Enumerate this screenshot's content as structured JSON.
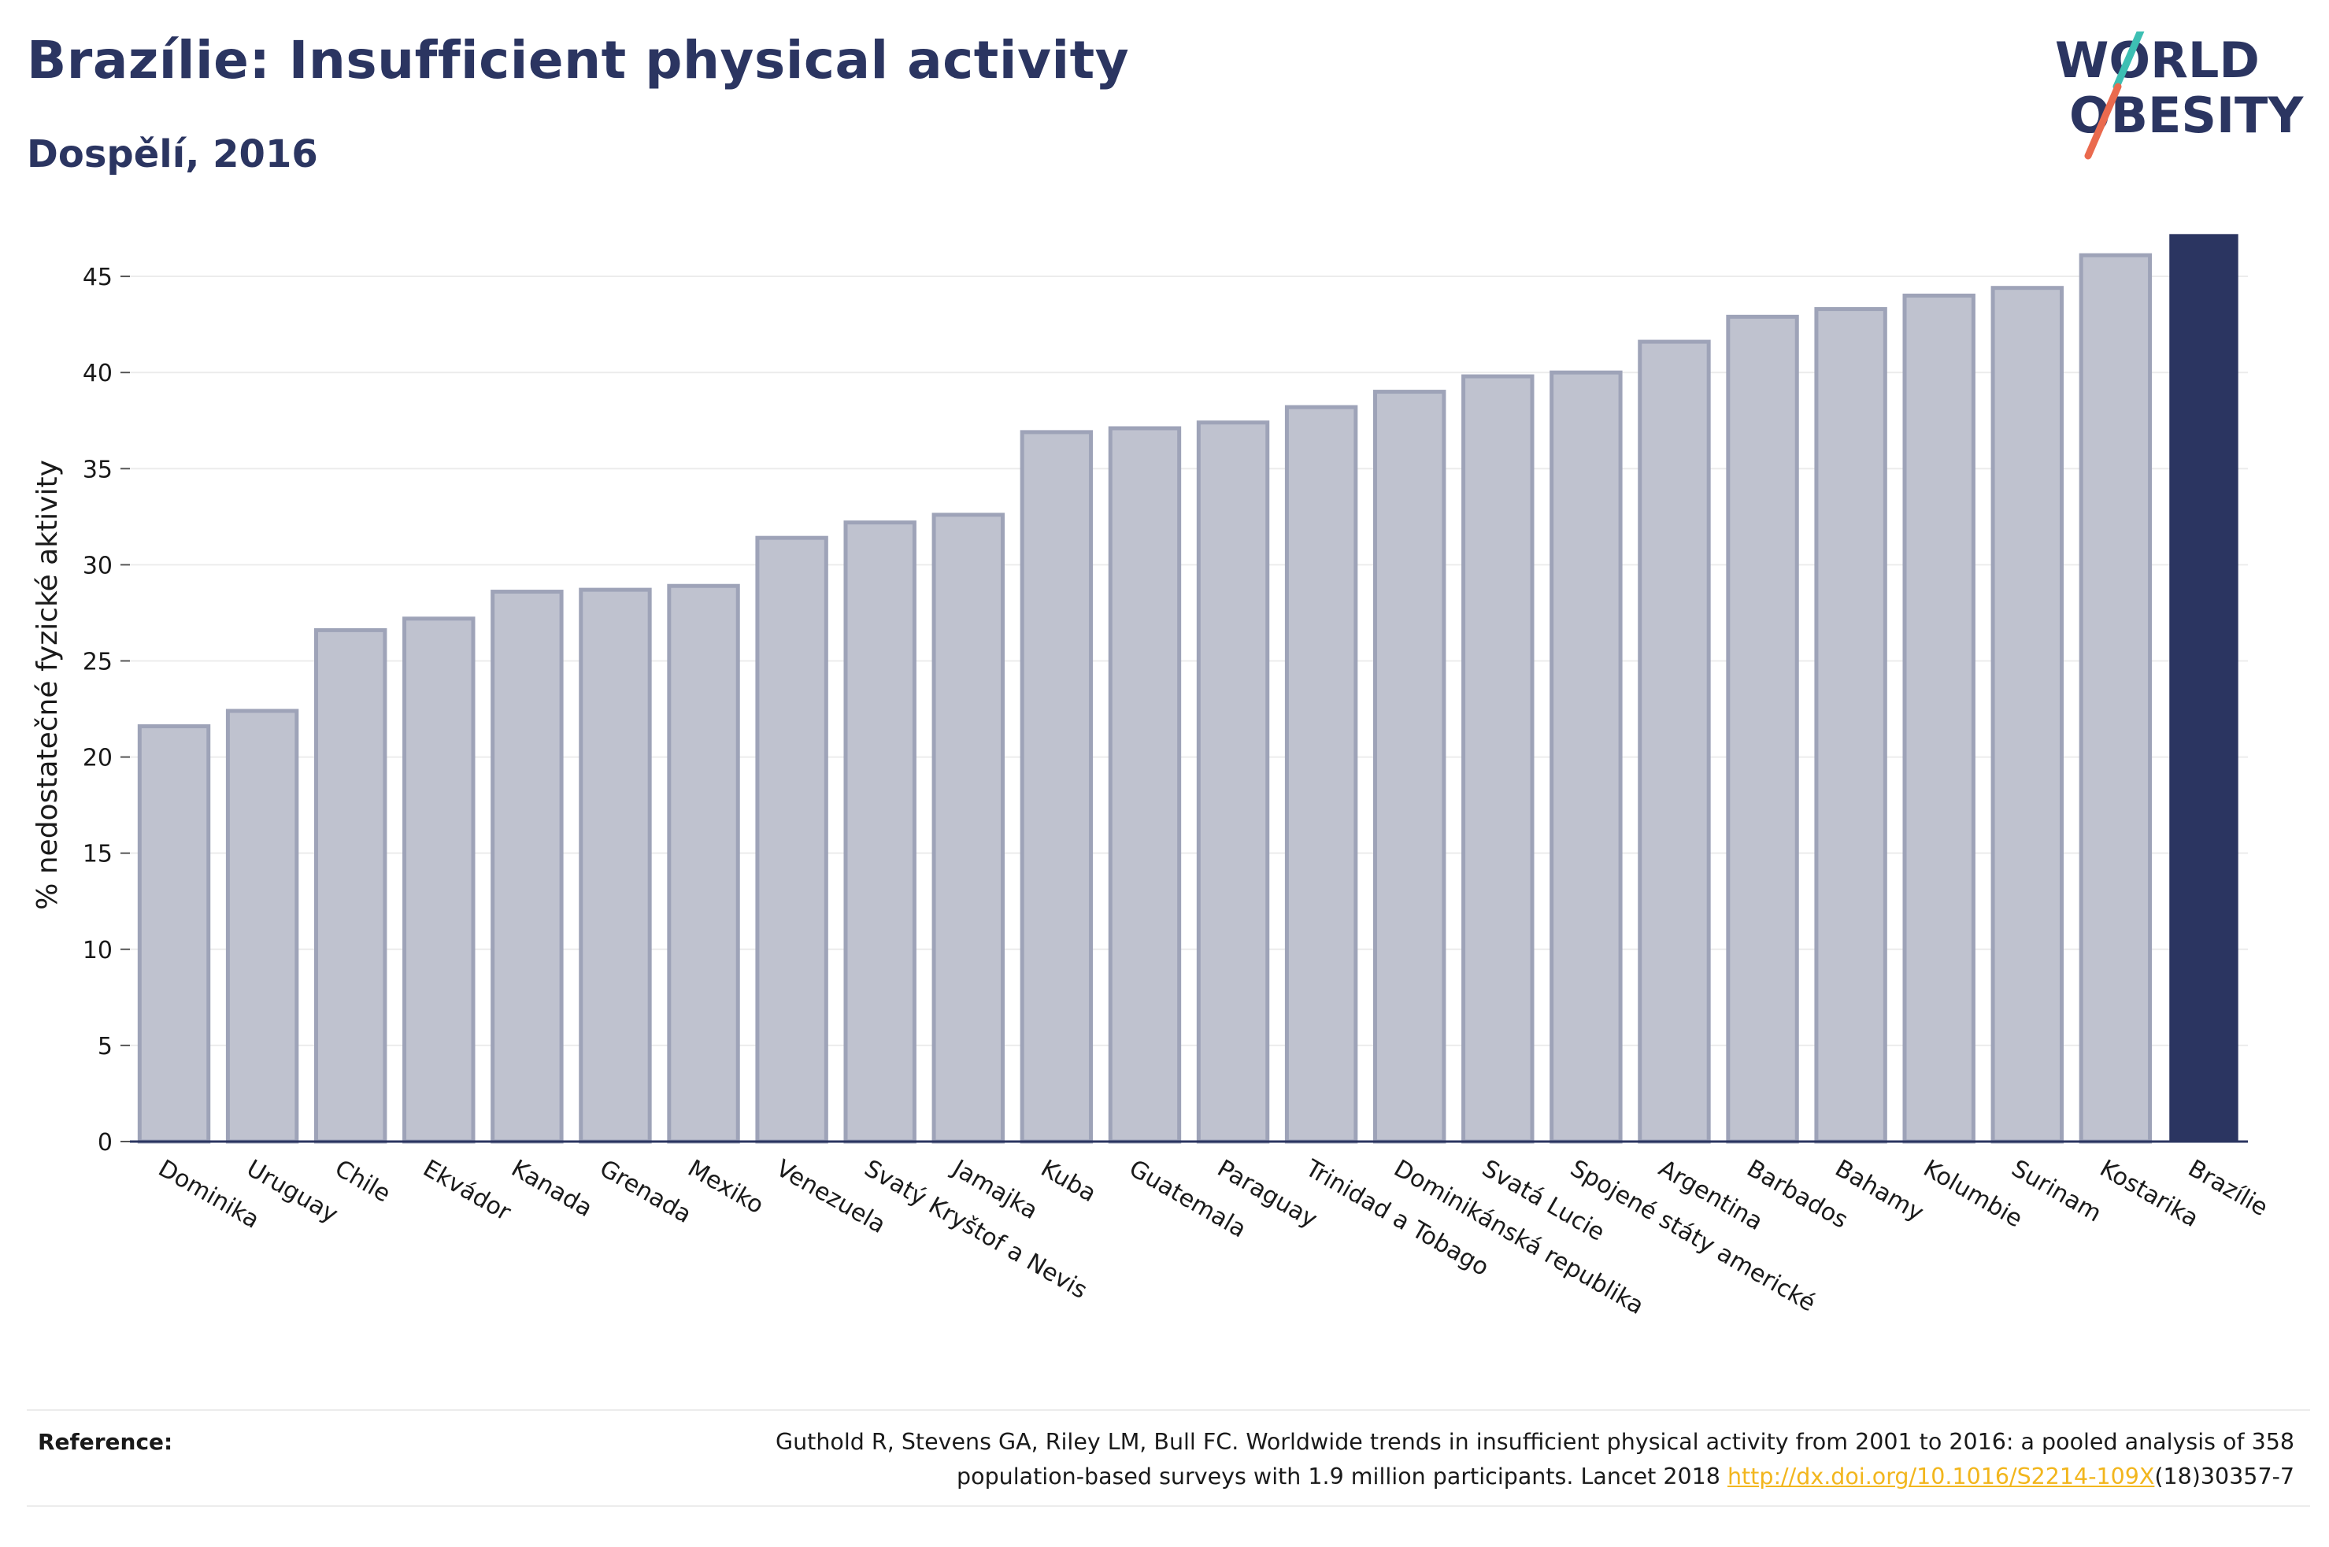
{
  "header": {
    "title": "Brazílie: Insufficient physical activity",
    "subtitle": "Dospělí, 2016"
  },
  "logo": {
    "line1": "WORLD",
    "line2": "OBESITY",
    "slash_colors": [
      "#3dbfb3",
      "#ea6a4e"
    ]
  },
  "colors": {
    "bar_default": "#bfc2cf",
    "bar_stroke": "#9ea3b8",
    "bar_highlight": "#2b3561",
    "grid": "#ececec",
    "axis": "#2b3561"
  },
  "chart_data": {
    "type": "bar",
    "ylabel": "% nedostatečné fyzické aktivity",
    "ylim": [
      0,
      47.5
    ],
    "yticks": [
      0,
      5,
      10,
      15,
      20,
      25,
      30,
      35,
      40,
      45
    ],
    "grid": true,
    "highlight": "Brazílie",
    "categories": [
      "Dominika",
      "Uruguay",
      "Chile",
      "Ekvádor",
      "Kanada",
      "Grenada",
      "Mexiko",
      "Venezuela",
      "Svatý Kryštof a Nevis",
      "Jamajka",
      "Kuba",
      "Guatemala",
      "Paraguay",
      "Trinidad a Tobago",
      "Dominikánská republika",
      "Svatá Lucie",
      "Spojené státy americké",
      "Argentina",
      "Barbados",
      "Bahamy",
      "Kolumbie",
      "Surinam",
      "Kostarika",
      "Brazílie"
    ],
    "values": [
      21.6,
      22.4,
      26.6,
      27.2,
      28.6,
      28.7,
      28.9,
      31.4,
      32.2,
      32.6,
      36.9,
      37.1,
      37.4,
      38.2,
      39.0,
      39.8,
      40.0,
      41.6,
      42.9,
      43.3,
      44.0,
      44.4,
      46.1,
      47.2
    ]
  },
  "footer": {
    "reference_label": "Reference:",
    "reference_text_1": "Guthold R, Stevens GA, Riley LM, Bull FC. Worldwide trends in insufficient physical activity from 2001 to 2016: a pooled analysis of 358",
    "reference_text_2": "population-based surveys with 1.9 million participants. Lancet 2018 ",
    "reference_link": "http://dx.doi.org/10.1016/S2214-109X",
    "reference_text_3": "(18)30357-7"
  }
}
